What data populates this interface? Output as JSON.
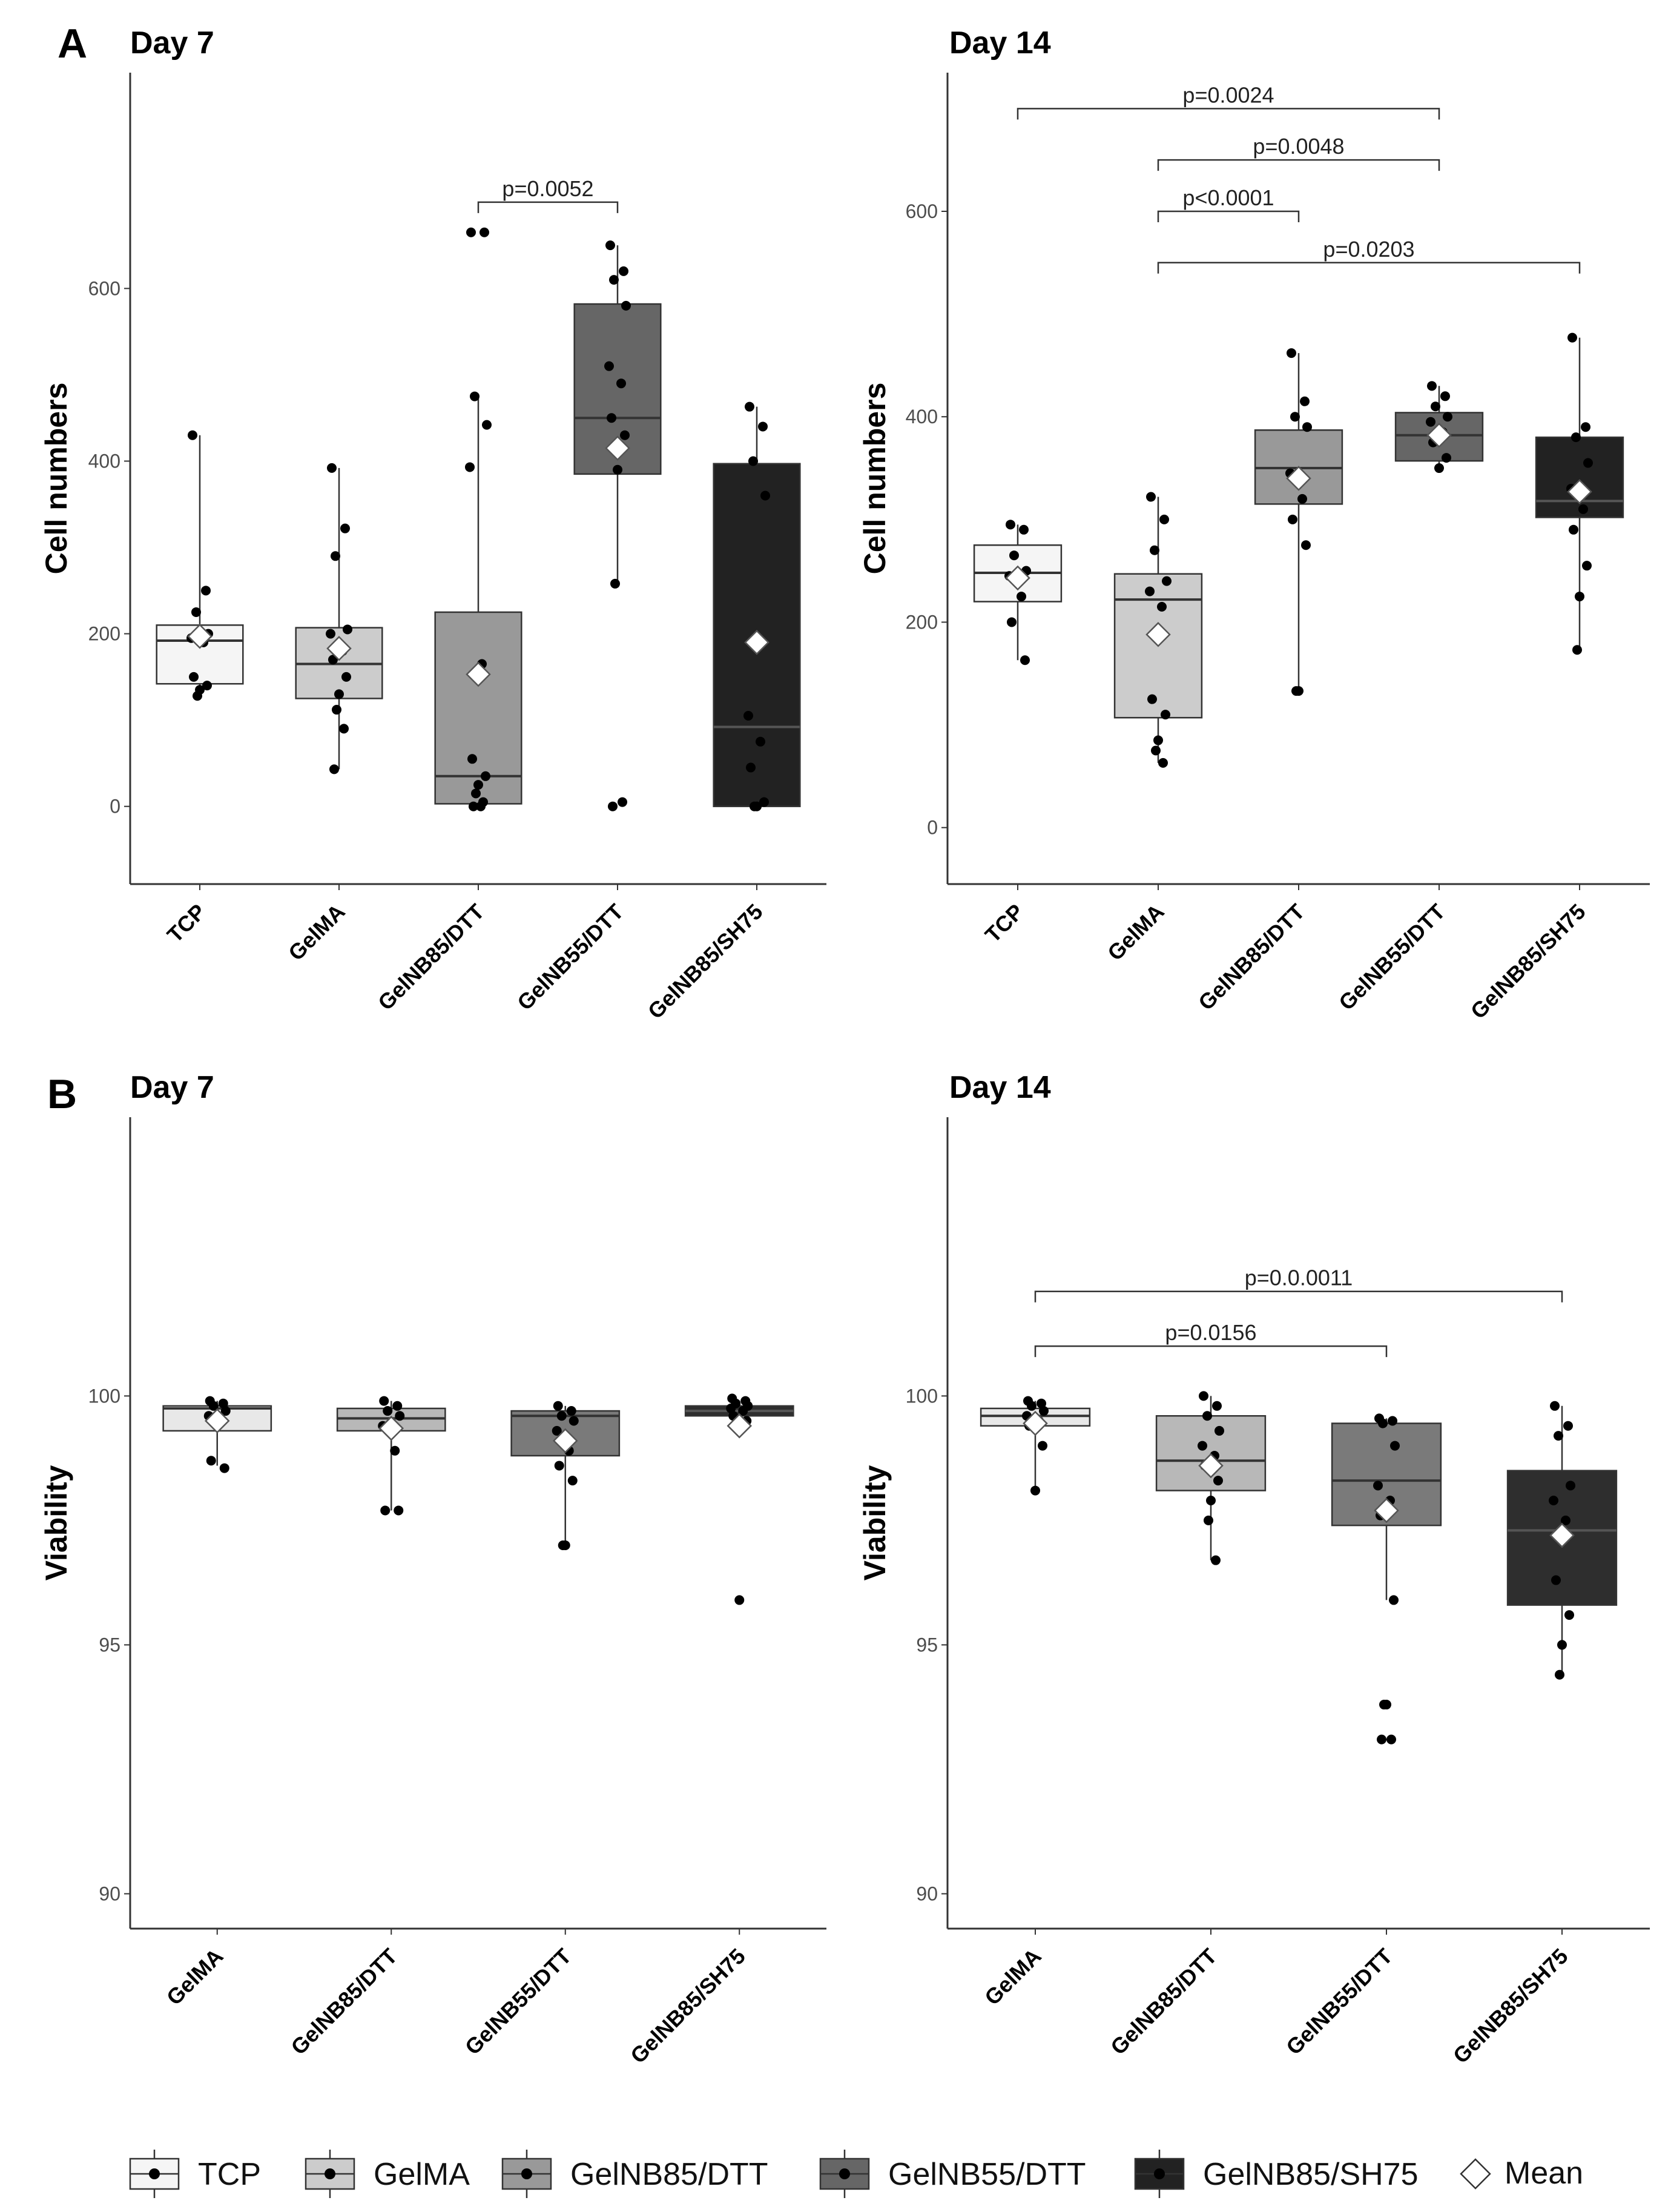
{
  "figure": {
    "panel_labels": [
      "A",
      "B"
    ]
  },
  "chart_data": [
    {
      "type": "box",
      "panel": "A",
      "title": "Day 7",
      "ylabel": "Cell numbers",
      "ylim": [
        -90,
        850
      ],
      "yticks": [
        0,
        200,
        400,
        600
      ],
      "categories": [
        "TCP",
        "GelMA",
        "GelNB85/DTT",
        "GelNB55/DTT",
        "GelNB85/SH75"
      ],
      "fills": [
        "#f5f5f5",
        "#cccccc",
        "#999999",
        "#666666",
        "#222222"
      ],
      "boxes": [
        {
          "q1": 142,
          "median": 192,
          "q3": 210,
          "min": 128,
          "max": 430,
          "mean": 197
        },
        {
          "q1": 125,
          "median": 165,
          "q3": 207,
          "min": 43,
          "max": 392,
          "mean": 183
        },
        {
          "q1": 3,
          "median": 35,
          "q3": 225,
          "min": 0,
          "max": 475,
          "mean": 153
        },
        {
          "q1": 385,
          "median": 450,
          "q3": 582,
          "min": 258,
          "max": 650,
          "mean": 415
        },
        {
          "q1": 0,
          "median": 92,
          "q3": 397,
          "min": 0,
          "max": 463,
          "mean": 190
        }
      ],
      "points": [
        [
          430,
          250,
          225,
          200,
          195,
          190,
          150,
          140,
          135,
          128
        ],
        [
          392,
          322,
          290,
          205,
          200,
          180,
          170,
          150,
          130,
          112,
          90,
          43
        ],
        [
          665,
          665,
          475,
          442,
          393,
          165,
          55,
          35,
          25,
          15,
          5,
          0,
          0
        ],
        [
          650,
          620,
          610,
          580,
          510,
          490,
          450,
          430,
          390,
          258,
          5,
          0
        ],
        [
          463,
          440,
          400,
          360,
          105,
          75,
          45,
          5,
          0,
          0
        ]
      ],
      "brackets": [
        {
          "from": 2,
          "to": 3,
          "y": 700,
          "label": "p=0.0052"
        }
      ]
    },
    {
      "type": "box",
      "panel": "A",
      "title": "Day 14",
      "ylabel": "Cell numbers",
      "ylim": [
        -55,
        735
      ],
      "yticks": [
        0,
        200,
        400,
        600
      ],
      "categories": [
        "TCP",
        "GelMA",
        "GelNB85/DTT",
        "GelNB55/DTT",
        "GelNB85/SH75"
      ],
      "fills": [
        "#f5f5f5",
        "#cccccc",
        "#999999",
        "#666666",
        "#222222"
      ],
      "boxes": [
        {
          "q1": 220,
          "median": 248,
          "q3": 275,
          "min": 163,
          "max": 295,
          "mean": 243
        },
        {
          "q1": 107,
          "median": 222,
          "q3": 247,
          "min": 63,
          "max": 322,
          "mean": 188
        },
        {
          "q1": 315,
          "median": 350,
          "q3": 387,
          "min": 133,
          "max": 462,
          "mean": 340
        },
        {
          "q1": 357,
          "median": 382,
          "q3": 404,
          "min": 348,
          "max": 430,
          "mean": 382
        },
        {
          "q1": 302,
          "median": 318,
          "q3": 380,
          "min": 173,
          "max": 477,
          "mean": 327
        }
      ],
      "points": [
        [
          295,
          290,
          265,
          250,
          245,
          225,
          200,
          163
        ],
        [
          322,
          300,
          270,
          240,
          230,
          215,
          125,
          110,
          85,
          75,
          63
        ],
        [
          462,
          415,
          400,
          390,
          345,
          320,
          300,
          275,
          133,
          133
        ],
        [
          430,
          420,
          410,
          400,
          395,
          385,
          375,
          360,
          350
        ],
        [
          477,
          390,
          380,
          355,
          330,
          310,
          290,
          255,
          225,
          173
        ]
      ],
      "brackets": [
        {
          "from": 0,
          "to": 3,
          "y": 700,
          "label": "p=0.0024"
        },
        {
          "from": 1,
          "to": 3,
          "y": 650,
          "label": "p=0.0048"
        },
        {
          "from": 1,
          "to": 2,
          "y": 600,
          "label": "p<0.0001"
        },
        {
          "from": 1,
          "to": 4,
          "y": 550,
          "label": "p=0.0203"
        }
      ]
    },
    {
      "type": "box",
      "panel": "B",
      "title": "Day 7",
      "ylabel": "Viability",
      "ylim": [
        89.3,
        105.6
      ],
      "yticks": [
        90,
        95,
        100
      ],
      "categories": [
        "GelMA",
        "GelNB85/DTT",
        "GelNB55/DTT",
        "GelNB85/SH75"
      ],
      "fills": [
        "#e8e8e8",
        "#b8b8b8",
        "#7a7a7a",
        "#2e2e2e"
      ],
      "boxes": [
        {
          "q1": 99.3,
          "median": 99.75,
          "q3": 99.8,
          "min": 98.6,
          "max": 99.9,
          "mean": 99.5
        },
        {
          "q1": 99.3,
          "median": 99.55,
          "q3": 99.75,
          "min": 97.7,
          "max": 99.9,
          "mean": 99.35
        },
        {
          "q1": 98.8,
          "median": 99.6,
          "q3": 99.7,
          "min": 97.0,
          "max": 99.8,
          "mean": 99.1
        },
        {
          "q1": 99.6,
          "median": 99.7,
          "q3": 99.8,
          "min": 99.5,
          "max": 99.9,
          "mean": 99.4
        }
      ],
      "points": [
        [
          99.9,
          99.85,
          99.8,
          99.7,
          99.6,
          99.5,
          98.7,
          98.55
        ],
        [
          99.9,
          99.8,
          99.7,
          99.6,
          99.4,
          98.9,
          97.7,
          97.7
        ],
        [
          99.8,
          99.7,
          99.6,
          99.5,
          99.3,
          98.9,
          98.6,
          98.3,
          97.0,
          97.0
        ],
        [
          99.95,
          99.9,
          99.85,
          99.8,
          99.75,
          99.7,
          99.6,
          99.5,
          95.9
        ]
      ],
      "brackets": []
    },
    {
      "type": "box",
      "panel": "B",
      "title": "Day 14",
      "ylabel": "Viability",
      "ylim": [
        89.3,
        105.6
      ],
      "yticks": [
        90,
        95,
        100
      ],
      "categories": [
        "GelMA",
        "GelNB85/DTT",
        "GelNB55/DTT",
        "GelNB85/SH75"
      ],
      "fills": [
        "#e8e8e8",
        "#b8b8b8",
        "#7a7a7a",
        "#2e2e2e"
      ],
      "boxes": [
        {
          "q1": 99.4,
          "median": 99.6,
          "q3": 99.75,
          "min": 98.1,
          "max": 99.9,
          "mean": 99.45
        },
        {
          "q1": 98.1,
          "median": 98.7,
          "q3": 99.6,
          "min": 96.7,
          "max": 100.0,
          "mean": 98.6
        },
        {
          "q1": 97.4,
          "median": 98.3,
          "q3": 99.45,
          "min": 95.9,
          "max": 99.55,
          "mean": 97.7
        },
        {
          "q1": 95.8,
          "median": 97.3,
          "q3": 98.5,
          "min": 94.4,
          "max": 99.8,
          "mean": 97.2
        }
      ],
      "points": [
        [
          99.9,
          99.85,
          99.8,
          99.7,
          99.6,
          99.5,
          99.4,
          99.0,
          98.1
        ],
        [
          100.0,
          99.8,
          99.6,
          99.3,
          99.0,
          98.8,
          98.6,
          98.3,
          97.9,
          97.5,
          96.7
        ],
        [
          99.55,
          99.5,
          99.45,
          99.0,
          98.2,
          97.9,
          97.6,
          95.9,
          93.8,
          93.8,
          93.1,
          93.1
        ],
        [
          99.8,
          99.4,
          99.2,
          98.2,
          97.9,
          97.5,
          96.3,
          95.6,
          95.0,
          94.4
        ]
      ],
      "brackets": [
        {
          "from": 0,
          "to": 3,
          "y": 102.1,
          "label": "p=0.0.0011"
        },
        {
          "from": 0,
          "to": 2,
          "y": 101.0,
          "label": "p=0.0156"
        }
      ]
    }
  ],
  "legend": {
    "position": "bottom",
    "items": [
      {
        "label": "TCP",
        "fill": "#f5f5f5",
        "kind": "box"
      },
      {
        "label": "GelMA",
        "fill": "#cccccc",
        "kind": "box"
      },
      {
        "label": "GelNB85/DTT",
        "fill": "#999999",
        "kind": "box"
      },
      {
        "label": "GelNB55/DTT",
        "fill": "#666666",
        "kind": "box"
      },
      {
        "label": "GelNB85/SH75",
        "fill": "#222222",
        "kind": "box"
      },
      {
        "label": "Mean",
        "fill": "#ffffff",
        "kind": "diamond"
      }
    ]
  }
}
